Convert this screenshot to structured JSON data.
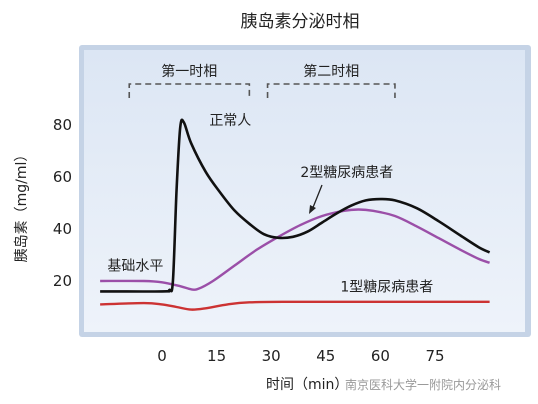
{
  "chart_data": {
    "type": "line",
    "title": "胰岛素分泌时相",
    "xlabel": "时间（min）",
    "ylabel": "胰岛素（mg/ml）",
    "x_ticks": [
      0,
      15,
      30,
      45,
      60,
      75
    ],
    "y_ticks": [
      20,
      40,
      60,
      80
    ],
    "xlim": [
      -17,
      100
    ],
    "ylim": [
      0,
      92
    ],
    "grid": false,
    "phases": [
      {
        "label": "第一时相",
        "x_start": -9,
        "x_end": 24
      },
      {
        "label": "第二时相",
        "x_start": 29,
        "x_end": 64
      }
    ],
    "series": [
      {
        "name": "正常人",
        "color": "#111111",
        "points": [
          [
            -17,
            16
          ],
          [
            0,
            16
          ],
          [
            2,
            16.5
          ],
          [
            3,
            20
          ],
          [
            4,
            55
          ],
          [
            5,
            79
          ],
          [
            6,
            81
          ],
          [
            8,
            73
          ],
          [
            12,
            62
          ],
          [
            16,
            54
          ],
          [
            20,
            47
          ],
          [
            24,
            42
          ],
          [
            28,
            38
          ],
          [
            32,
            36.6
          ],
          [
            36,
            37
          ],
          [
            40,
            39
          ],
          [
            44,
            42.5
          ],
          [
            48,
            46
          ],
          [
            52,
            49
          ],
          [
            56,
            51
          ],
          [
            60,
            51.5
          ],
          [
            64,
            51
          ],
          [
            70,
            48
          ],
          [
            76,
            43
          ],
          [
            82,
            37.5
          ],
          [
            87,
            33
          ],
          [
            90,
            31
          ]
        ]
      },
      {
        "name": "2型糖尿病患者",
        "color": "#9b4fa8",
        "points": [
          [
            -17,
            20
          ],
          [
            -5,
            20
          ],
          [
            0,
            19.5
          ],
          [
            5,
            18
          ],
          [
            8,
            16.8
          ],
          [
            10,
            17
          ],
          [
            14,
            20
          ],
          [
            20,
            26
          ],
          [
            26,
            32
          ],
          [
            32,
            37
          ],
          [
            38,
            41.5
          ],
          [
            44,
            45
          ],
          [
            50,
            47
          ],
          [
            54,
            47.5
          ],
          [
            58,
            47
          ],
          [
            64,
            45
          ],
          [
            70,
            41
          ],
          [
            76,
            36.5
          ],
          [
            82,
            32
          ],
          [
            87,
            28.5
          ],
          [
            90,
            27
          ]
        ]
      },
      {
        "name": "1型糖尿病患者",
        "color": "#cc3333",
        "points": [
          [
            -17,
            11
          ],
          [
            -5,
            11.5
          ],
          [
            0,
            11
          ],
          [
            4,
            10
          ],
          [
            8,
            9
          ],
          [
            12,
            9.5
          ],
          [
            18,
            11
          ],
          [
            24,
            11.8
          ],
          [
            35,
            12
          ],
          [
            50,
            12
          ],
          [
            70,
            12
          ],
          [
            90,
            12
          ]
        ]
      }
    ],
    "annotations": [
      {
        "text": "正常人",
        "x": 13,
        "y": 80,
        "target": "正常人"
      },
      {
        "text": "2型糖尿病患者",
        "x": 38,
        "y": 60,
        "target": "2型糖尿病患者"
      },
      {
        "text": "1型糖尿病患者",
        "x": 49,
        "y": 16,
        "target": "1型糖尿病患者"
      },
      {
        "text": "基础水平",
        "x": -15,
        "y": 24
      }
    ]
  },
  "watermark": "南京医科大学一附院内分泌科"
}
